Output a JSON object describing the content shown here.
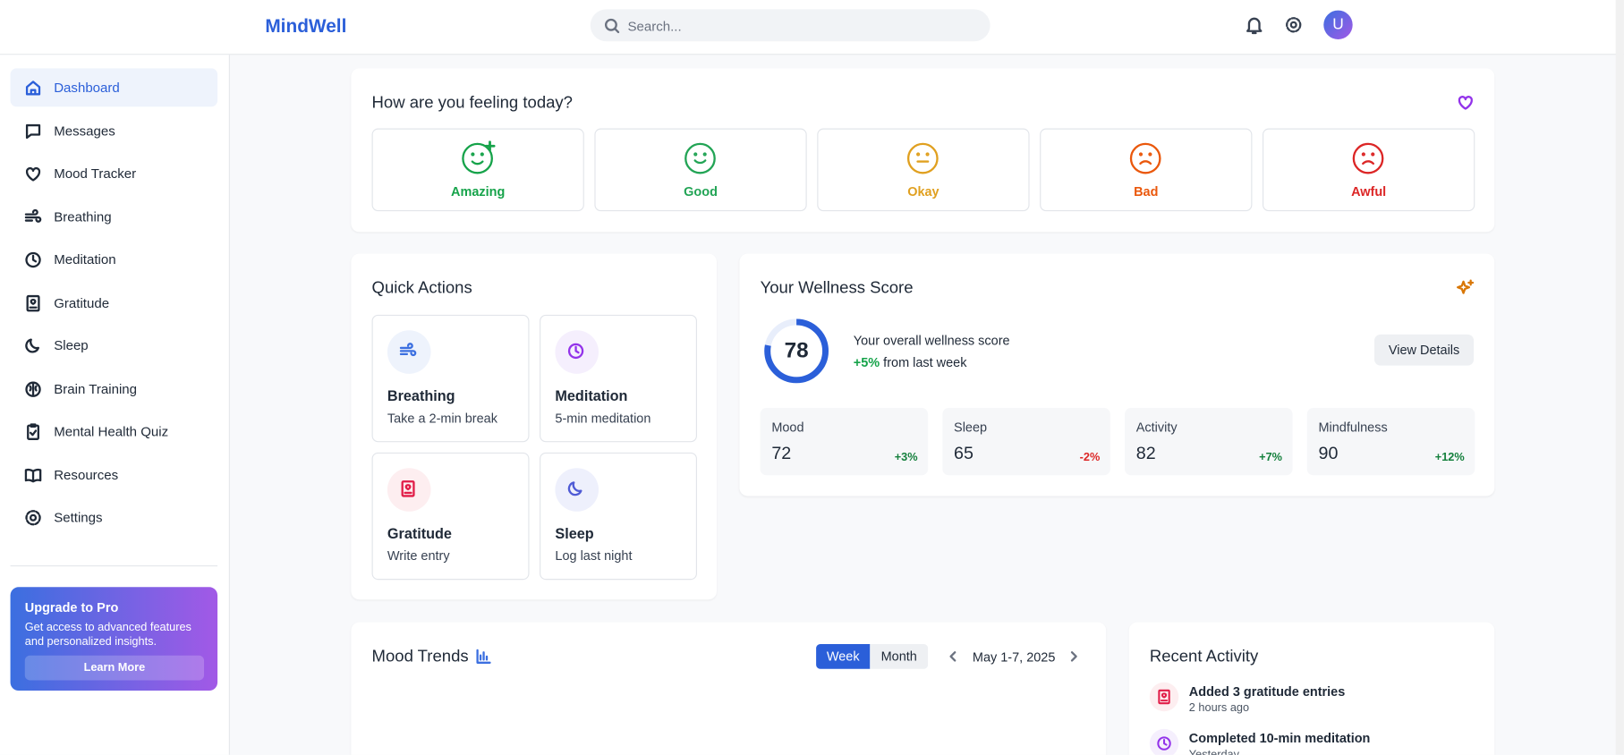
{
  "header": {
    "logo": "MindWell",
    "search_placeholder": "Search...",
    "avatar": "U"
  },
  "sidebar": {
    "nav": [
      "Dashboard",
      "Messages",
      "Mood Tracker",
      "Breathing",
      "Meditation",
      "Gratitude",
      "Sleep",
      "Brain Training",
      "Mental Health Quiz",
      "Resources",
      "Settings"
    ],
    "upgrade": {
      "title": "Upgrade to Pro",
      "text": "Get access to advanced features and personalized insights.",
      "button": "Learn More"
    }
  },
  "mood_check": {
    "title": "How are you feeling today?",
    "options": [
      "Amazing",
      "Good",
      "Okay",
      "Bad",
      "Awful"
    ]
  },
  "quick_actions": {
    "title": "Quick Actions",
    "items": [
      {
        "title": "Breathing",
        "subtitle": "Take a 2-min break"
      },
      {
        "title": "Meditation",
        "subtitle": "5-min meditation"
      },
      {
        "title": "Gratitude",
        "subtitle": "Write entry"
      },
      {
        "title": "Sleep",
        "subtitle": "Log last night"
      }
    ]
  },
  "wellness": {
    "title": "Your Wellness Score",
    "score": 78,
    "description": "Your overall wellness score",
    "change": "+5%",
    "change_suffix": "from last week",
    "button": "View Details",
    "metrics": [
      {
        "name": "Mood",
        "value": 72,
        "change": "+3%"
      },
      {
        "name": "Sleep",
        "value": 65,
        "change": "-2%"
      },
      {
        "name": "Activity",
        "value": 82,
        "change": "+7%"
      },
      {
        "name": "Mindfulness",
        "value": 90,
        "change": "+12%"
      }
    ]
  },
  "mood_trends": {
    "title": "Mood Trends",
    "toggle": [
      "Week",
      "Month"
    ],
    "range": "May 1-7, 2025"
  },
  "recent_activity": {
    "title": "Recent Activity",
    "items": [
      {
        "title": "Added 3 gratitude entries",
        "time": "2 hours ago"
      },
      {
        "title": "Completed 10-min meditation",
        "time": "Yesterday"
      }
    ]
  }
}
